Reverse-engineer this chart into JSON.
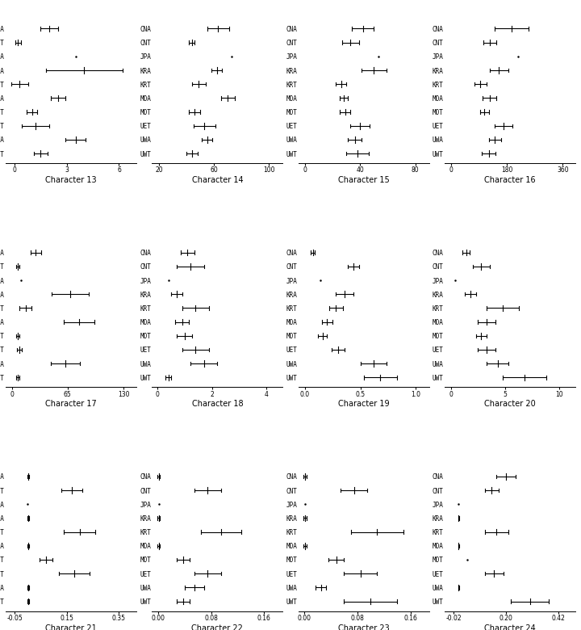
{
  "populations": [
    "CNA",
    "CNT",
    "JPA",
    "KRA",
    "KRT",
    "MOA",
    "MOT",
    "UET",
    "UWA",
    "UWT"
  ],
  "characters": [
    {
      "name": "Character 13",
      "xlim": [
        -0.5,
        7.0
      ],
      "xticks": [
        0,
        3,
        6
      ],
      "xtick_labels": [
        "0",
        "3",
        "6"
      ],
      "data": {
        "CNA": [
          2.0,
          0.5
        ],
        "CNT": [
          0.2,
          0.15
        ],
        "JPA": [
          3.5,
          0.0
        ],
        "KRA": [
          4.0,
          2.2
        ],
        "KRT": [
          0.3,
          0.5
        ],
        "MOA": [
          2.5,
          0.4
        ],
        "MOT": [
          1.0,
          0.3
        ],
        "UET": [
          1.2,
          0.8
        ],
        "UWA": [
          3.5,
          0.6
        ],
        "UWT": [
          1.5,
          0.4
        ]
      }
    },
    {
      "name": "Character 14",
      "xlim": [
        15.0,
        110.0
      ],
      "xticks": [
        20,
        60,
        100
      ],
      "xtick_labels": [
        "20",
        "60",
        "100"
      ],
      "data": {
        "CNA": [
          63.0,
          8.0
        ],
        "CNT": [
          44.0,
          2.0
        ],
        "JPA": [
          73.0,
          0.0
        ],
        "KRA": [
          62.0,
          4.0
        ],
        "KRT": [
          49.0,
          5.0
        ],
        "MOA": [
          70.0,
          5.0
        ],
        "MOT": [
          46.0,
          4.0
        ],
        "UET": [
          53.0,
          8.0
        ],
        "UWA": [
          55.0,
          4.0
        ],
        "UWT": [
          44.0,
          4.0
        ]
      }
    },
    {
      "name": "Character 15",
      "xlim": [
        -5.0,
        90.0
      ],
      "xticks": [
        0,
        40,
        80
      ],
      "xtick_labels": [
        "0",
        "40",
        "80"
      ],
      "data": {
        "CNA": [
          42.0,
          8.0
        ],
        "CNT": [
          33.0,
          6.0
        ],
        "JPA": [
          53.0,
          0.0
        ],
        "KRA": [
          50.0,
          9.0
        ],
        "KRT": [
          26.0,
          4.0
        ],
        "MOA": [
          28.0,
          3.0
        ],
        "MOT": [
          29.0,
          4.0
        ],
        "UET": [
          40.0,
          7.0
        ],
        "UWA": [
          36.0,
          5.0
        ],
        "UWT": [
          38.0,
          8.0
        ]
      }
    },
    {
      "name": "Character 16",
      "xlim": [
        -20.0,
        400.0
      ],
      "xticks": [
        0,
        180,
        360
      ],
      "xtick_labels": [
        "0",
        "180",
        "360"
      ],
      "data": {
        "CNA": [
          195.0,
          55.0
        ],
        "CNT": [
          125.0,
          20.0
        ],
        "JPA": [
          215.0,
          0.0
        ],
        "KRA": [
          155.0,
          30.0
        ],
        "KRT": [
          95.0,
          20.0
        ],
        "MOA": [
          125.0,
          22.0
        ],
        "MOT": [
          108.0,
          15.0
        ],
        "UET": [
          170.0,
          28.0
        ],
        "UWA": [
          142.0,
          20.0
        ],
        "UWT": [
          122.0,
          22.0
        ]
      }
    },
    {
      "name": "Character 17",
      "xlim": [
        -7.0,
        145.0
      ],
      "xticks": [
        0,
        65,
        130
      ],
      "xtick_labels": [
        "0",
        "65",
        "130"
      ],
      "data": {
        "CNA": [
          28.0,
          6.0
        ],
        "CNT": [
          7.0,
          2.0
        ],
        "JPA": [
          11.0,
          0.0
        ],
        "KRA": [
          68.0,
          22.0
        ],
        "KRT": [
          16.0,
          7.0
        ],
        "MOA": [
          78.0,
          18.0
        ],
        "MOT": [
          7.0,
          2.0
        ],
        "UET": [
          9.0,
          3.0
        ],
        "UWA": [
          62.0,
          17.0
        ],
        "UWT": [
          7.0,
          2.0
        ]
      }
    },
    {
      "name": "Character 18",
      "xlim": [
        -0.2,
        4.6
      ],
      "xticks": [
        0,
        2,
        4
      ],
      "xtick_labels": [
        "0",
        "2",
        "4"
      ],
      "data": {
        "CNA": [
          1.1,
          0.25
        ],
        "CNT": [
          1.2,
          0.5
        ],
        "JPA": [
          0.4,
          0.0
        ],
        "KRA": [
          0.7,
          0.2
        ],
        "KRT": [
          1.4,
          0.5
        ],
        "MOA": [
          0.9,
          0.25
        ],
        "MOT": [
          1.0,
          0.28
        ],
        "UET": [
          1.4,
          0.5
        ],
        "UWA": [
          1.7,
          0.5
        ],
        "UWT": [
          0.4,
          0.1
        ]
      }
    },
    {
      "name": "Character 19",
      "xlim": [
        -0.06,
        1.12
      ],
      "xticks": [
        0.0,
        0.5,
        1.0
      ],
      "xtick_labels": [
        "0.0",
        "0.5",
        "1.0"
      ],
      "data": {
        "CNA": [
          0.07,
          0.02
        ],
        "CNT": [
          0.44,
          0.05
        ],
        "JPA": [
          0.14,
          0.0
        ],
        "KRA": [
          0.36,
          0.08
        ],
        "KRT": [
          0.28,
          0.06
        ],
        "MOA": [
          0.2,
          0.05
        ],
        "MOT": [
          0.16,
          0.04
        ],
        "UET": [
          0.3,
          0.06
        ],
        "UWA": [
          0.62,
          0.12
        ],
        "UWT": [
          0.68,
          0.15
        ]
      }
    },
    {
      "name": "Character 20",
      "xlim": [
        -0.6,
        11.5
      ],
      "xticks": [
        0,
        5,
        10
      ],
      "xtick_labels": [
        "0",
        "5",
        "10"
      ],
      "data": {
        "CNA": [
          1.4,
          0.35
        ],
        "CNT": [
          2.8,
          0.8
        ],
        "JPA": [
          0.4,
          0.0
        ],
        "KRA": [
          1.8,
          0.5
        ],
        "KRT": [
          4.8,
          1.5
        ],
        "MOA": [
          3.3,
          0.8
        ],
        "MOT": [
          2.8,
          0.5
        ],
        "UET": [
          3.3,
          0.8
        ],
        "UWA": [
          4.3,
          1.0
        ],
        "UWT": [
          6.8,
          2.0
        ]
      }
    },
    {
      "name": "Character 21",
      "xlim": [
        -0.085,
        0.42
      ],
      "xticks": [
        -0.05,
        0.15,
        0.35
      ],
      "xtick_labels": [
        "-0.05",
        "0.15",
        "0.35"
      ],
      "data": {
        "CNA": [
          0.001,
          0.003
        ],
        "CNT": [
          0.17,
          0.04
        ],
        "JPA": [
          0.0,
          0.0
        ],
        "KRA": [
          0.001,
          0.003
        ],
        "KRT": [
          0.2,
          0.06
        ],
        "MOA": [
          0.001,
          0.003
        ],
        "MOT": [
          0.07,
          0.025
        ],
        "UET": [
          0.18,
          0.06
        ],
        "UWA": [
          0.001,
          0.003
        ],
        "UWT": [
          0.001,
          0.003
        ]
      }
    },
    {
      "name": "Character 22",
      "xlim": [
        -0.009,
        0.188
      ],
      "xticks": [
        0.0,
        0.08,
        0.16
      ],
      "xtick_labels": [
        "0.00",
        "0.08",
        "0.16"
      ],
      "data": {
        "CNA": [
          0.001,
          0.002
        ],
        "CNT": [
          0.075,
          0.02
        ],
        "JPA": [
          0.001,
          0.0
        ],
        "KRA": [
          0.001,
          0.002
        ],
        "KRT": [
          0.095,
          0.03
        ],
        "MOA": [
          0.001,
          0.002
        ],
        "MOT": [
          0.038,
          0.01
        ],
        "UET": [
          0.075,
          0.02
        ],
        "UWA": [
          0.055,
          0.015
        ],
        "UWT": [
          0.038,
          0.01
        ]
      }
    },
    {
      "name": "Character 23",
      "xlim": [
        -0.009,
        0.188
      ],
      "xticks": [
        0.0,
        0.08,
        0.16
      ],
      "xtick_labels": [
        "0.00",
        "0.08",
        "0.16"
      ],
      "data": {
        "CNA": [
          0.001,
          0.002
        ],
        "CNT": [
          0.075,
          0.02
        ],
        "JPA": [
          0.001,
          0.0
        ],
        "KRA": [
          0.001,
          0.002
        ],
        "KRT": [
          0.11,
          0.04
        ],
        "MOA": [
          0.001,
          0.002
        ],
        "MOT": [
          0.048,
          0.012
        ],
        "UET": [
          0.085,
          0.025
        ],
        "UWA": [
          0.025,
          0.008
        ],
        "UWT": [
          0.1,
          0.04
        ]
      }
    },
    {
      "name": "Character 24",
      "xlim": [
        -0.058,
        0.49
      ],
      "xticks": [
        -0.02,
        0.2,
        0.42
      ],
      "xtick_labels": [
        "-0.02",
        "0.20",
        "0.42"
      ],
      "data": {
        "CNA": [
          0.2,
          0.04
        ],
        "CNT": [
          0.14,
          0.03
        ],
        "JPA": [
          0.001,
          0.0
        ],
        "KRA": [
          0.001,
          0.002
        ],
        "KRT": [
          0.16,
          0.05
        ],
        "MOA": [
          0.001,
          0.002
        ],
        "MOT": [
          0.038,
          0.0
        ],
        "UET": [
          0.15,
          0.04
        ],
        "UWA": [
          0.001,
          0.002
        ],
        "UWT": [
          0.3,
          0.08
        ]
      }
    }
  ],
  "fig_bg": "#ffffff",
  "line_color": "black",
  "dot_color": "black",
  "fontsize_labels": 5.5,
  "fontsize_title": 7.0,
  "fontsize_ticks": 5.5
}
